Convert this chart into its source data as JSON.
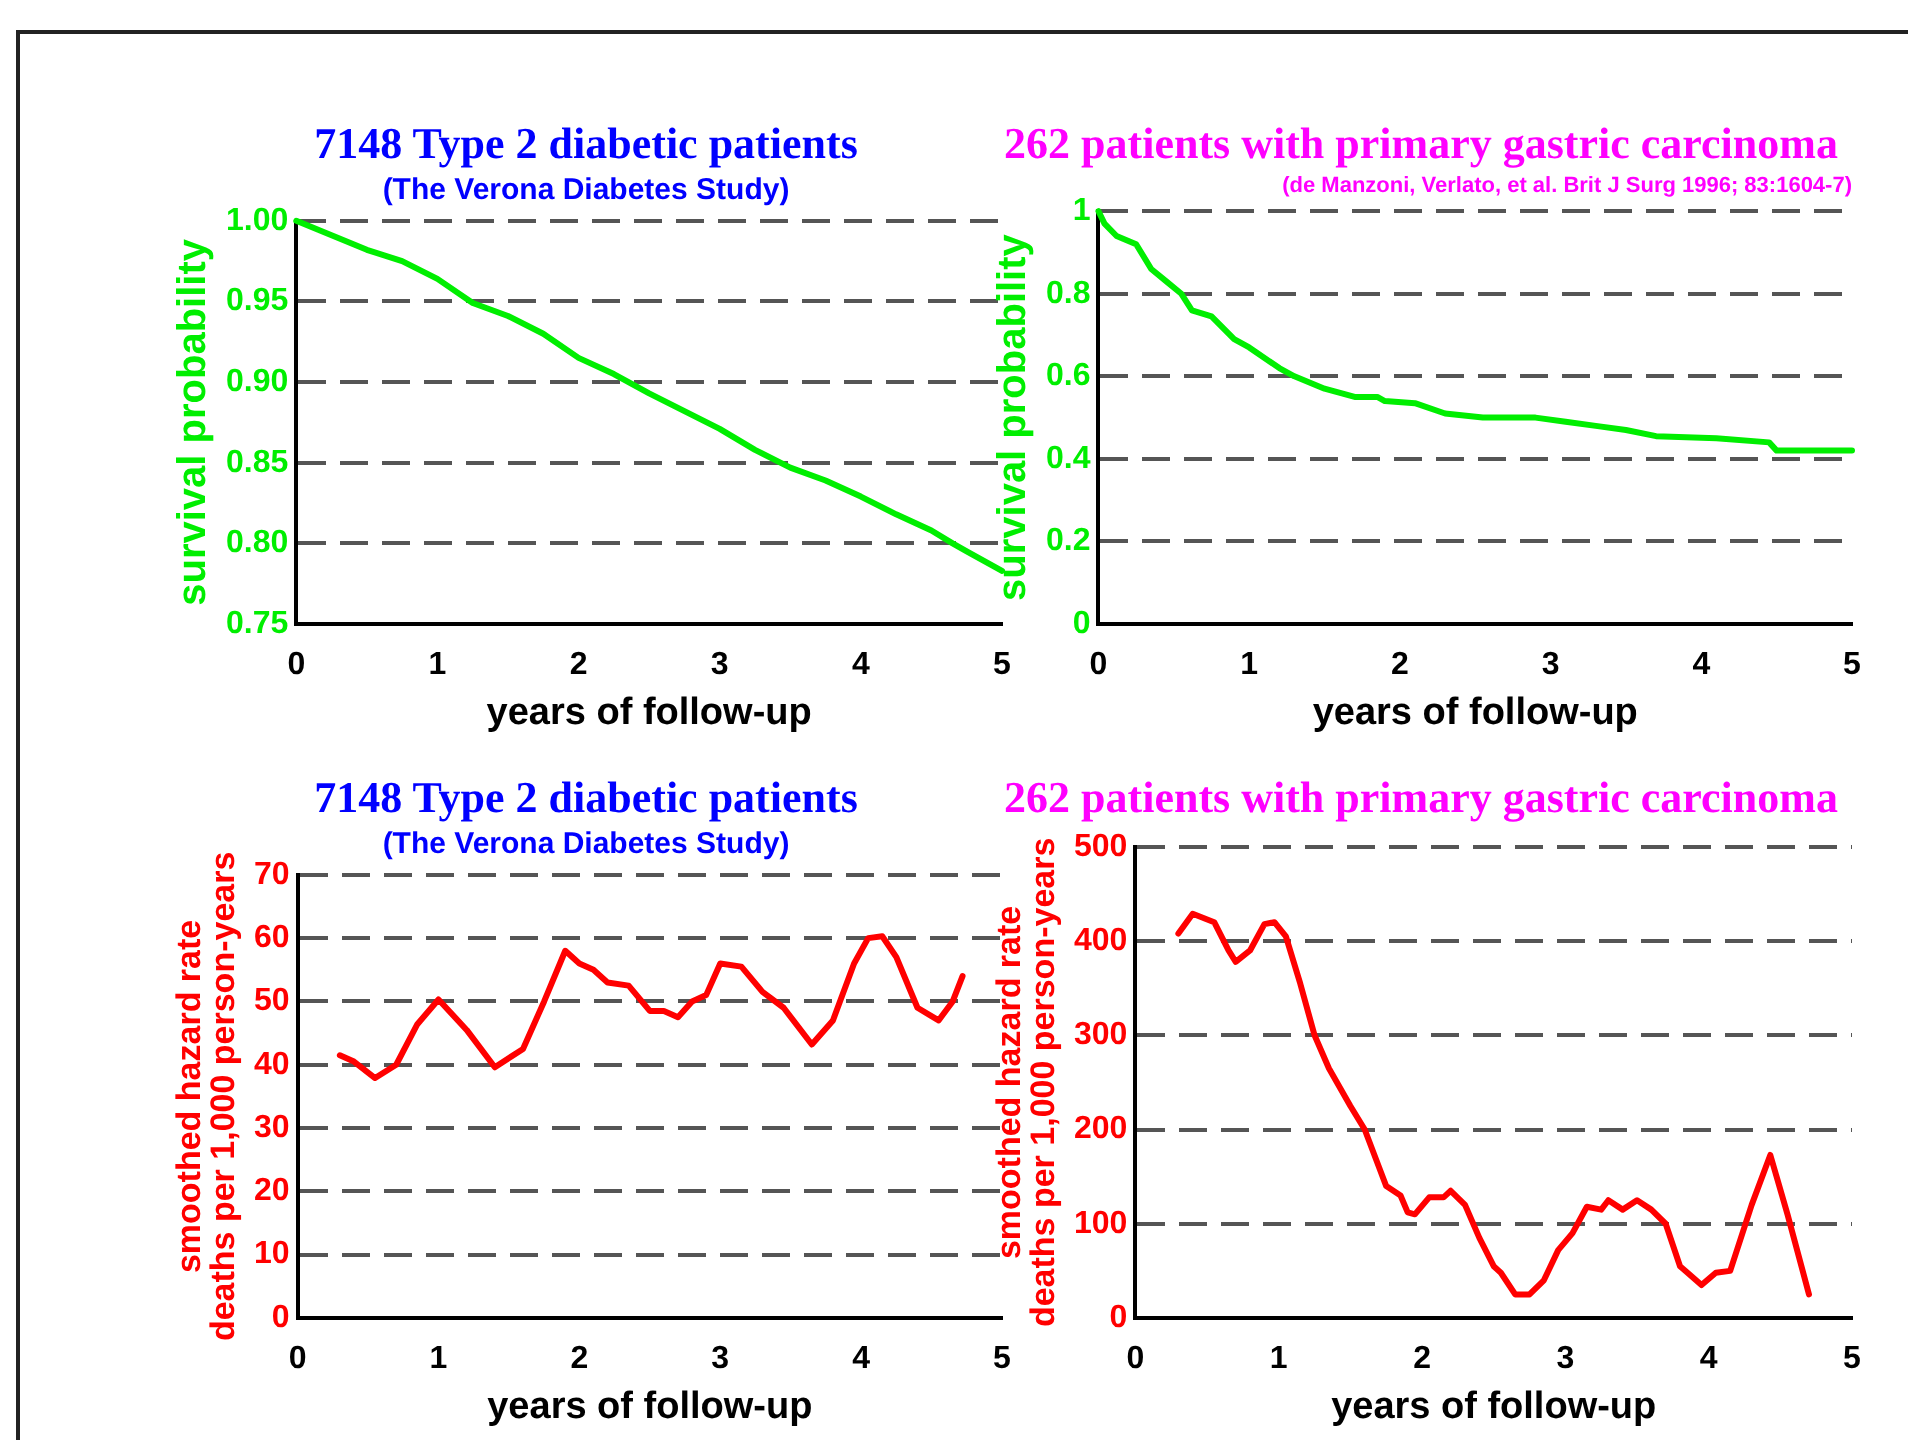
{
  "chart_data": [
    {
      "type": "line",
      "title": "7148 Type 2 diabetic patients",
      "subtitle": "(The Verona Diabetes Study)",
      "xlabel": "years of follow-up",
      "ylabel": "survival probability",
      "color": "#00ee00",
      "marker": "none",
      "grid": "y",
      "x": [
        0,
        0.25,
        0.5,
        0.75,
        1,
        1.25,
        1.5,
        1.75,
        2,
        2.25,
        2.5,
        2.75,
        3,
        3.25,
        3.5,
        3.75,
        4,
        4.25,
        4.5,
        4.65,
        4.75,
        5
      ],
      "values": [
        1.0,
        0.991,
        0.982,
        0.975,
        0.964,
        0.949,
        0.941,
        0.93,
        0.915,
        0.905,
        0.893,
        0.882,
        0.871,
        0.858,
        0.847,
        0.839,
        0.829,
        0.818,
        0.808,
        0.8,
        0.795,
        0.783
      ],
      "xlim": [
        0,
        5
      ],
      "xticks": [
        0,
        1,
        2,
        3,
        4,
        5
      ],
      "ylim": [
        0.75,
        1.0
      ],
      "yticks": [
        {
          "value": 0.75,
          "label": "0.75"
        },
        {
          "value": 0.8,
          "label": "0.80"
        },
        {
          "value": 0.85,
          "label": "0.85"
        },
        {
          "value": 0.9,
          "label": "0.90"
        },
        {
          "value": 0.95,
          "label": "0.95"
        },
        {
          "value": 1.0,
          "label": "1.00"
        }
      ]
    },
    {
      "type": "line",
      "title": "262 patients with primary gastric carcinoma",
      "subtitle": "(de Manzoni, Verlato, et al. Brit J Surg 1996; 83:1604-7)",
      "xlabel": "years of follow-up",
      "ylabel": "survival probability",
      "color": "#00ee00",
      "marker": "none",
      "grid": "y",
      "x": [
        0,
        0.04,
        0.12,
        0.25,
        0.35,
        0.45,
        0.55,
        0.62,
        0.75,
        0.9,
        1.0,
        1.2,
        1.3,
        1.5,
        1.7,
        1.85,
        1.9,
        2.1,
        2.3,
        2.55,
        2.9,
        3.1,
        3.3,
        3.5,
        3.7,
        4.1,
        4.45,
        4.5,
        5
      ],
      "values": [
        1.0,
        0.97,
        0.94,
        0.92,
        0.86,
        0.83,
        0.8,
        0.76,
        0.745,
        0.69,
        0.67,
        0.62,
        0.6,
        0.57,
        0.55,
        0.55,
        0.54,
        0.535,
        0.51,
        0.5,
        0.5,
        0.49,
        0.48,
        0.47,
        0.455,
        0.45,
        0.44,
        0.42,
        0.42
      ],
      "xlim": [
        0,
        5
      ],
      "xticks": [
        0,
        1,
        2,
        3,
        4,
        5
      ],
      "ylim": [
        0,
        1
      ],
      "yticks": [
        0,
        0.2,
        0.4,
        0.6,
        0.8,
        1
      ]
    },
    {
      "type": "line",
      "title": "7148 Type 2 diabetic patients",
      "subtitle": "(The Verona Diabetes Study)",
      "xlabel": "years of follow-up",
      "ylabel": "smoothed hazard rate\ndeaths per 1,000 person-years",
      "color": "#ff0000",
      "marker": "none",
      "grid": "y",
      "x": [
        0.3,
        0.4,
        0.55,
        0.7,
        0.85,
        1.0,
        1.2,
        1.4,
        1.6,
        1.75,
        1.9,
        2.0,
        2.1,
        2.2,
        2.35,
        2.5,
        2.6,
        2.7,
        2.8,
        2.9,
        3.0,
        3.15,
        3.3,
        3.45,
        3.65,
        3.8,
        3.95,
        4.05,
        4.15,
        4.25,
        4.4,
        4.55,
        4.65,
        4.72
      ],
      "values": [
        41.5,
        40.5,
        37.9,
        40,
        46.4,
        50.3,
        45.5,
        39.6,
        42.5,
        50,
        58,
        56,
        55,
        53,
        52.5,
        48.5,
        48.5,
        47.5,
        50,
        51,
        56,
        55.5,
        51.5,
        49,
        43.2,
        47,
        56,
        60,
        60.3,
        57,
        49,
        47,
        50,
        54
      ],
      "xlim": [
        0,
        5
      ],
      "xticks": [
        0,
        1,
        2,
        3,
        4,
        5
      ],
      "ylim": [
        0,
        70
      ],
      "yticks": [
        0,
        10,
        20,
        30,
        40,
        50,
        60,
        70
      ]
    },
    {
      "type": "line",
      "title": "262 patients with primary gastric carcinoma",
      "xlabel": "years of follow-up",
      "ylabel": "smoothed hazard rate\ndeaths per 1,000 person-years",
      "color": "#ff0000",
      "marker": "none",
      "grid": "y",
      "x": [
        0.3,
        0.4,
        0.55,
        0.65,
        0.7,
        0.8,
        0.9,
        0.97,
        1.05,
        1.15,
        1.25,
        1.35,
        1.5,
        1.6,
        1.7,
        1.75,
        1.85,
        1.9,
        1.95,
        2.05,
        2.15,
        2.2,
        2.3,
        2.4,
        2.5,
        2.55,
        2.65,
        2.75,
        2.85,
        2.95,
        3.05,
        3.15,
        3.25,
        3.3,
        3.4,
        3.5,
        3.6,
        3.7,
        3.8,
        3.95,
        4.05,
        4.15,
        4.3,
        4.43,
        4.55,
        4.7
      ],
      "values": [
        408,
        429,
        420,
        390,
        378,
        390,
        418,
        420,
        405,
        355,
        300,
        265,
        225,
        200,
        160,
        140,
        130,
        112,
        110,
        128,
        128,
        135,
        120,
        85,
        55,
        48,
        25,
        25,
        40,
        72,
        90,
        118,
        115,
        125,
        115,
        125,
        115,
        100,
        55,
        35,
        48,
        50,
        120,
        173,
        110,
        25
      ],
      "xlim": [
        0,
        5
      ],
      "xticks": [
        0,
        1,
        2,
        3,
        4,
        5
      ],
      "ylim": [
        0,
        500
      ],
      "yticks": [
        0,
        100,
        200,
        300,
        400,
        500
      ]
    }
  ]
}
